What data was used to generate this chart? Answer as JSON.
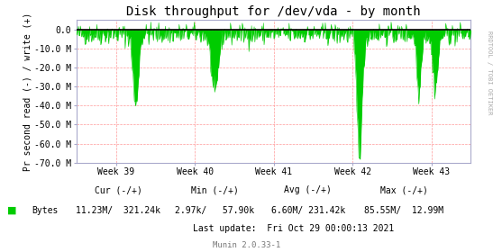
{
  "title": "Disk throughput for /dev/vda - by month",
  "ylabel": "Pr second read (-) / write (+)",
  "ylim": [
    -70000000,
    5000000
  ],
  "yticks": [
    0.0,
    -10000000,
    -20000000,
    -30000000,
    -40000000,
    -50000000,
    -60000000,
    -70000000
  ],
  "ytick_labels": [
    "0.0",
    "-10.0 M",
    "-20.0 M",
    "-30.0 M",
    "-40.0 M",
    "-50.0 M",
    "-60.0 M",
    "-70.0 M"
  ],
  "xlim": [
    0,
    100
  ],
  "xtick_positions": [
    10,
    30,
    50,
    70,
    90
  ],
  "xtick_labels": [
    "Week 39",
    "Week 40",
    "Week 41",
    "Week 42",
    "Week 43"
  ],
  "vline_positions": [
    10,
    30,
    50,
    70,
    90
  ],
  "line_color": "#00cc00",
  "zero_line_color": "#000000",
  "bg_color": "#ffffff",
  "plot_bg_color": "#ffffff",
  "grid_color": "#ff9999",
  "right_label": "RRDTOOL / TOBI OETIKER",
  "legend_label": "Bytes",
  "legend_color": "#00cc00",
  "footer_munin": "Munin 2.0.33-1",
  "footer_cur": "Cur (-/+)",
  "footer_min": "Min (-/+)",
  "footer_avg": "Avg (-/+)",
  "footer_max": "Max (-/+)",
  "footer_cur_val": "11.23M/  321.24k",
  "footer_min_val": "2.97k/   57.90k",
  "footer_avg_val": "6.60M/ 231.42k",
  "footer_max_val": "85.55M/  12.99M",
  "footer_lastupdate": "Last update:  Fri Oct 29 00:00:13 2021",
  "seed": 42
}
